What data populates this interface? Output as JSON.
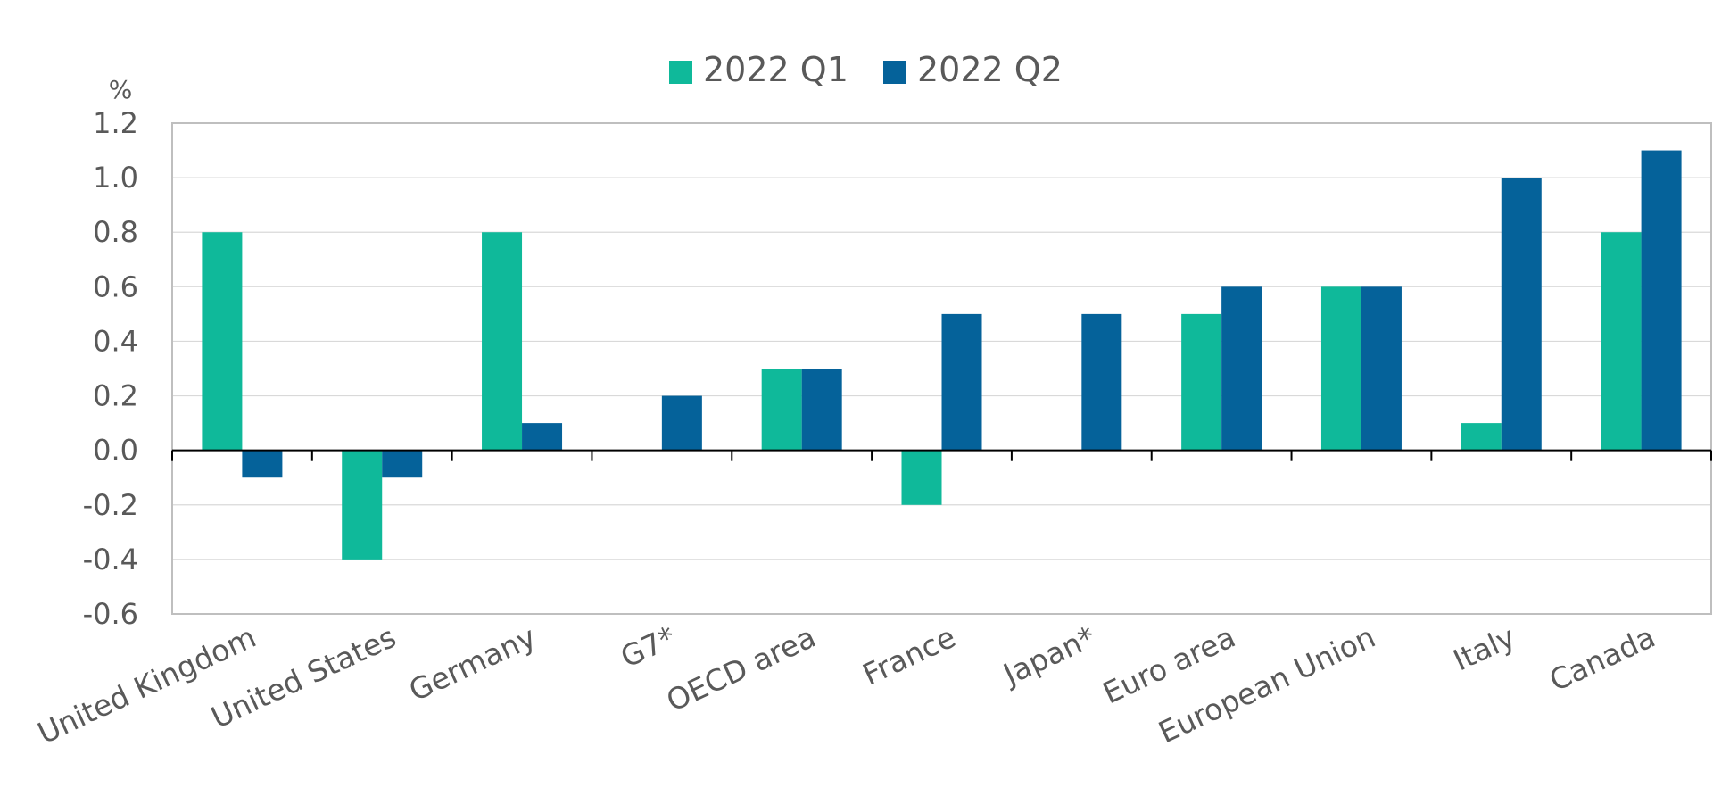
{
  "chart_data": {
    "type": "bar",
    "y_unit": "%",
    "categories": [
      "United Kingdom",
      "United States",
      "Germany",
      "G7*",
      "OECD area",
      "France",
      "Japan*",
      "Euro area",
      "European Union",
      "Italy",
      "Canada"
    ],
    "series": [
      {
        "name": "2022 Q1",
        "color": "#0fb99a",
        "values": [
          0.8,
          -0.4,
          0.8,
          0.0,
          0.3,
          -0.2,
          0.0,
          0.5,
          0.6,
          0.1,
          0.8
        ]
      },
      {
        "name": "2022 Q2",
        "color": "#05629a",
        "values": [
          -0.1,
          -0.1,
          0.1,
          0.2,
          0.3,
          0.5,
          0.5,
          0.6,
          0.6,
          1.0,
          1.1
        ]
      }
    ],
    "ylim": [
      -0.6,
      1.2
    ],
    "yticks": [
      -0.6,
      -0.4,
      -0.2,
      0.0,
      0.2,
      0.4,
      0.6,
      0.8,
      1.0,
      1.2
    ],
    "ytick_labels": [
      "-0.6",
      "-0.4",
      "-0.2",
      "0.0",
      "0.2",
      "0.4",
      "0.6",
      "0.8",
      "1.0",
      "1.2"
    ],
    "grid": true,
    "legend_position": "top-center"
  }
}
